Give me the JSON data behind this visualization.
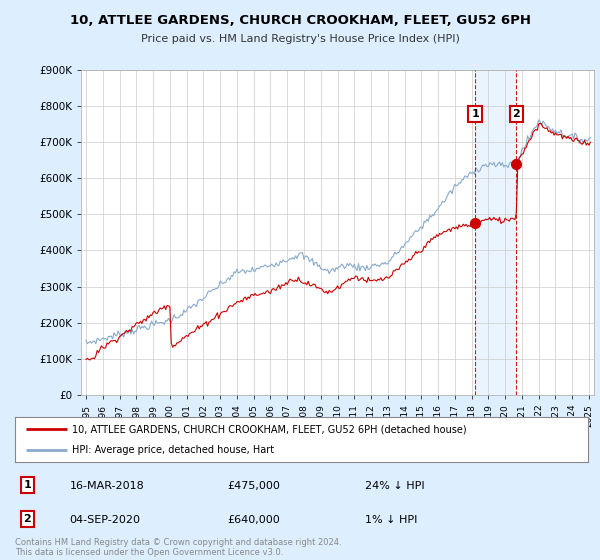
{
  "title_line1": "10, ATTLEE GARDENS, CHURCH CROOKHAM, FLEET, GU52 6PH",
  "title_line2": "Price paid vs. HM Land Registry's House Price Index (HPI)",
  "legend_line1": "10, ATTLEE GARDENS, CHURCH CROOKHAM, FLEET, GU52 6PH (detached house)",
  "legend_line2": "HPI: Average price, detached house, Hart",
  "annotation1_date": "16-MAR-2018",
  "annotation1_price": "£475,000",
  "annotation1_hpi": "24% ↓ HPI",
  "annotation2_date": "04-SEP-2020",
  "annotation2_price": "£640,000",
  "annotation2_hpi": "1% ↓ HPI",
  "footer": "Contains HM Land Registry data © Crown copyright and database right 2024.\nThis data is licensed under the Open Government Licence v3.0.",
  "sale1_year": 2018.21,
  "sale1_price": 475000,
  "sale2_year": 2020.67,
  "sale2_price": 640000,
  "property_line_color": "#cc0000",
  "hpi_line_color": "#88aacc",
  "annotation_box_color": "#cc0000",
  "background_color": "#ddeeff",
  "plot_bg_color": "#ffffff",
  "shade_color": "#ddeeff",
  "ylim": [
    0,
    900000
  ],
  "xlim_start": 1994.7,
  "xlim_end": 2025.3,
  "copyright_color": "#888888",
  "vline_color": "#cc0000",
  "grid_color": "#cccccc"
}
